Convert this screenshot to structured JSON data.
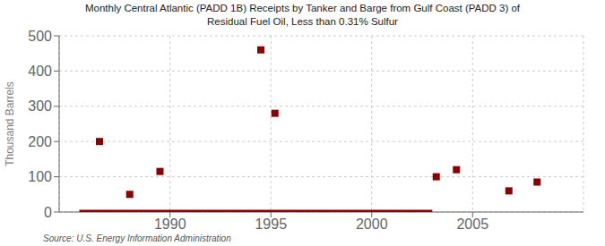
{
  "chart_data": {
    "type": "scatter",
    "title": "Monthly Central Atlantic (PADD 1B) Receipts by Tanker and Barge from Gulf Coast (PADD 3) of\nResidual Fuel Oil, Less than 0.31% Sulfur",
    "ylabel": "Thousand Barrels",
    "annotations": [
      "Source: U.S. Energy Information Administration"
    ],
    "xlim": [
      1984.5,
      2010.5
    ],
    "ylim": [
      0,
      500
    ],
    "xticks": [
      1990,
      1995,
      2000,
      2005
    ],
    "yticks": [
      0,
      100,
      200,
      300,
      400,
      500
    ],
    "grid": true,
    "series": [
      {
        "type": "scatter",
        "marker": "square",
        "color": "#8b0000",
        "x": [
          1986.5,
          1988.0,
          1989.5,
          1994.5,
          1995.2,
          2003.2,
          2004.2,
          2006.8,
          2008.2
        ],
        "values": [
          200,
          50,
          115,
          460,
          280,
          100,
          120,
          60,
          85
        ]
      },
      {
        "type": "line",
        "color": "#8b0000",
        "x": [
          1985.5,
          2003.0
        ],
        "values": [
          0,
          0
        ]
      }
    ]
  }
}
